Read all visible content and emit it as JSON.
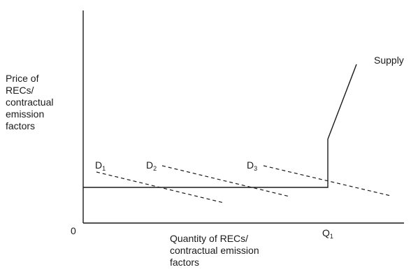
{
  "diagram": {
    "y_axis_label_lines": [
      "Price of",
      "RECs/",
      "contractual",
      "emission",
      "factors"
    ],
    "x_axis_label_lines": [
      "Quantity of RECs/",
      "contractual emission",
      "factors"
    ],
    "origin_label": "0",
    "q1_label": {
      "base": "Q",
      "sub": "1"
    },
    "supply_label": "Supply",
    "demand_curves": [
      {
        "base": "D",
        "sub": "1"
      },
      {
        "base": "D",
        "sub": "2"
      },
      {
        "base": "D",
        "sub": "3"
      }
    ],
    "colors": {
      "lines": "#1a1a1a",
      "background": "#ffffff"
    }
  }
}
